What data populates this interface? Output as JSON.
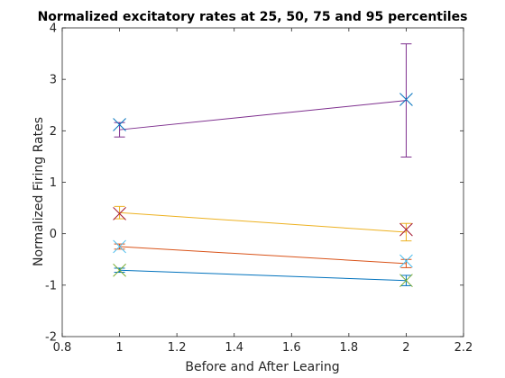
{
  "chart_data": {
    "type": "line",
    "title": "Normalized excitatory rates at 25, 50, 75 and 95 percentiles",
    "xlabel": "Before and After Learing",
    "ylabel": "Normalized Firing Rates",
    "xlim": [
      0.8,
      2.2
    ],
    "ylim": [
      -2,
      4
    ],
    "xticks": [
      "0.8",
      "1",
      "1.2",
      "1.4",
      "1.6",
      "1.8",
      "2",
      "2.2"
    ],
    "yticks": [
      "-2",
      "-1",
      "0",
      "1",
      "2",
      "3",
      "4"
    ],
    "grid": false,
    "legend": "none",
    "x": [
      1,
      2
    ],
    "series": [
      {
        "color": "#0072BD",
        "values": [
          -0.71,
          -0.91
        ],
        "errors": [
          0.04,
          0.1
        ],
        "markers": [
          {
            "y": -0.71,
            "color": "#77AC30"
          },
          {
            "y": -0.91,
            "color": "#77AC30"
          }
        ]
      },
      {
        "color": "#D95319",
        "values": [
          -0.25,
          -0.58
        ],
        "errors": [
          0.05,
          0.08
        ],
        "markers": [
          {
            "y": -0.25,
            "color": "#4DBEEE"
          },
          {
            "y": -0.53,
            "color": "#4DBEEE"
          }
        ]
      },
      {
        "color": "#EDB120",
        "values": [
          0.41,
          0.03
        ],
        "errors": [
          0.12,
          0.17
        ],
        "markers": [
          {
            "y": 0.39,
            "color": "#A2142F"
          },
          {
            "y": 0.08,
            "color": "#A2142F"
          }
        ]
      },
      {
        "color": "#7E2F8E",
        "values": [
          2.02,
          2.59
        ],
        "errors": [
          0.14,
          1.1
        ],
        "markers": [
          {
            "y": 2.12,
            "color": "#0072BD"
          },
          {
            "y": 2.61,
            "color": "#0072BD"
          }
        ]
      }
    ]
  }
}
